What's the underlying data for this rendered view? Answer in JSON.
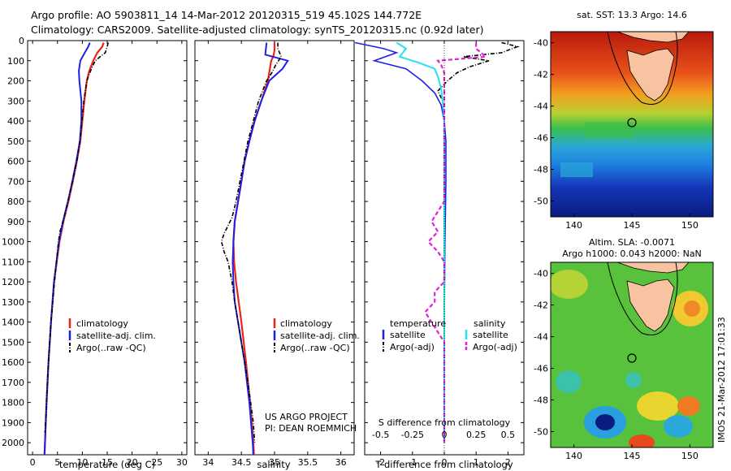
{
  "header": {
    "line1": "Argo profile: AO 5903811_14 14-Mar-2012 20120315_519 45.102S 144.772E",
    "line2": "Climatology: CARS2009. Satellite-adjusted climatology: synTS_20120315.nc (0.92d later)"
  },
  "colors": {
    "climatology": "#e8251b",
    "satellite": "#1f1fe6",
    "argo": "#000000",
    "sal_satellite": "#22e3ee",
    "sal_argo": "#e020d8",
    "land": "#f7c3a0"
  },
  "chart_data": [
    {
      "type": "line",
      "panel": "temperature",
      "xlabel": "temperature (deg C)",
      "xlim": [
        -1,
        31
      ],
      "xticks": [
        0,
        5,
        10,
        15,
        20,
        25,
        30
      ],
      "ylim": [
        0,
        2060
      ],
      "yticks": [
        0,
        100,
        200,
        300,
        400,
        500,
        600,
        700,
        800,
        900,
        1000,
        1100,
        1200,
        1300,
        1400,
        1500,
        1600,
        1700,
        1800,
        1900,
        2000
      ],
      "legend": [
        "climatology",
        "satellite-adj. clim.",
        "Argo(..raw -QC)"
      ],
      "series": [
        {
          "name": "climatology",
          "depth": [
            10,
            30,
            60,
            100,
            150,
            200,
            300,
            400,
            500,
            600,
            700,
            800,
            900,
            1000,
            1200,
            1400,
            1600,
            1800,
            2000,
            2060
          ],
          "values": [
            14.3,
            14.0,
            13.0,
            12.2,
            11.4,
            10.9,
            10.4,
            10.0,
            9.6,
            8.9,
            8.1,
            7.2,
            6.2,
            5.4,
            4.3,
            3.7,
            3.2,
            2.8,
            2.5,
            2.4
          ]
        },
        {
          "name": "satellite-adj. clim.",
          "depth": [
            10,
            30,
            60,
            100,
            150,
            200,
            300,
            400,
            500,
            600,
            700,
            800,
            900,
            1000,
            1200,
            1400,
            1600,
            1800,
            2000,
            2060
          ],
          "values": [
            11.5,
            11.2,
            10.5,
            9.6,
            9.3,
            9.4,
            9.8,
            9.8,
            9.5,
            8.8,
            8.0,
            7.1,
            6.1,
            5.3,
            4.3,
            3.7,
            3.2,
            2.8,
            2.5,
            2.4
          ]
        },
        {
          "name": "Argo(..raw -QC)",
          "depth": [
            10,
            30,
            60,
            80,
            100,
            130,
            160,
            200,
            300,
            400,
            500,
            600,
            700,
            800,
            900,
            950,
            1000,
            1100,
            1200,
            1400,
            1600,
            1800,
            1950
          ],
          "values": [
            15.2,
            15.0,
            14.6,
            13.6,
            12.6,
            12.0,
            11.5,
            10.9,
            10.3,
            9.9,
            9.5,
            8.9,
            8.0,
            7.1,
            6.1,
            5.5,
            5.2,
            4.8,
            4.4,
            3.7,
            3.2,
            2.8,
            2.5
          ]
        }
      ]
    },
    {
      "type": "line",
      "panel": "salinity",
      "xlabel": "salinity",
      "xlim": [
        33.8,
        36.2
      ],
      "xticks": [
        34,
        34.5,
        35,
        35.5,
        36
      ],
      "ylim": [
        0,
        2060
      ],
      "legend": [
        "climatology",
        "satellite-adj. clim.",
        "Argo(..raw -QC)"
      ],
      "annotation": [
        "US ARGO PROJECT",
        "PI: DEAN ROEMMICH"
      ],
      "series": [
        {
          "name": "climatology",
          "depth": [
            10,
            50,
            80,
            100,
            140,
            200,
            300,
            400,
            500,
            600,
            700,
            800,
            900,
            1000,
            1100,
            1200,
            1300,
            1400,
            1600,
            1800,
            2000,
            2060
          ],
          "values": [
            35.0,
            35.0,
            34.98,
            34.95,
            34.93,
            34.9,
            34.8,
            34.7,
            34.62,
            34.55,
            34.5,
            34.45,
            34.4,
            34.38,
            34.39,
            34.42,
            34.46,
            34.5,
            34.57,
            34.63,
            34.68,
            34.69
          ]
        },
        {
          "name": "satellite-adj. clim.",
          "depth": [
            10,
            40,
            70,
            100,
            140,
            200,
            300,
            400,
            500,
            600,
            700,
            800,
            900,
            1000,
            1100,
            1200,
            1300,
            1400,
            1600,
            1800,
            2000,
            2060
          ],
          "values": [
            34.88,
            34.87,
            34.86,
            35.2,
            35.12,
            34.92,
            34.8,
            34.7,
            34.62,
            34.55,
            34.5,
            34.45,
            34.4,
            34.38,
            34.37,
            34.38,
            34.4,
            34.45,
            34.55,
            34.62,
            34.67,
            34.68
          ]
        },
        {
          "name": "Argo(..raw -QC)",
          "depth": [
            10,
            40,
            80,
            120,
            160,
            200,
            300,
            400,
            500,
            600,
            700,
            800,
            880,
            920,
            960,
            1000,
            1050,
            1100,
            1200,
            1300,
            1400,
            1500,
            1600,
            1700,
            1800,
            1900,
            2000
          ],
          "values": [
            35.05,
            35.05,
            35.1,
            35.02,
            34.96,
            34.88,
            34.76,
            34.68,
            34.6,
            34.54,
            34.48,
            34.42,
            34.36,
            34.3,
            34.24,
            34.2,
            34.24,
            34.3,
            34.36,
            34.4,
            34.45,
            34.5,
            34.55,
            34.6,
            34.64,
            34.68,
            34.7
          ]
        }
      ]
    },
    {
      "type": "line",
      "panel": "differences",
      "xlabel": "T difference from climatology",
      "xlabel_top": "S difference from climatology",
      "xlim": [
        -2.5,
        2.5
      ],
      "xticks": [
        -2,
        -1,
        0,
        1,
        2
      ],
      "xticklabels_top": [
        "-0.5",
        "-0.25",
        "0",
        "0.25",
        "0.5"
      ],
      "ylim": [
        0,
        2060
      ],
      "legend_titles": [
        "temperature",
        "salinity"
      ],
      "legend": [
        "satellite",
        "Argo(-adj)",
        "satellite",
        "Argo(-adj)"
      ],
      "series": [
        {
          "name": "satellite",
          "group": "temperature",
          "depth": [
            10,
            40,
            60,
            100,
            140,
            200,
            260,
            320,
            400,
            500,
            700,
            1000,
            1400,
            2000
          ],
          "values": [
            -2.8,
            -1.9,
            -1.5,
            -2.2,
            -1.2,
            -0.7,
            -0.3,
            -0.1,
            0.0,
            0.05,
            0.05,
            0.02,
            0.0,
            0.0
          ]
        },
        {
          "name": "Argo(-adj)",
          "group": "temperature",
          "depth": [
            10,
            30,
            60,
            80,
            100,
            130,
            160,
            200,
            250,
            300,
            400,
            500,
            700,
            1000,
            1400,
            2000
          ],
          "values": [
            1.8,
            2.3,
            1.8,
            0.6,
            1.4,
            0.8,
            0.4,
            0.1,
            -0.2,
            -0.05,
            0.0,
            0.0,
            0.0,
            0.0,
            0.0,
            0.0
          ]
        },
        {
          "name": "satellite",
          "group": "salinity",
          "depth": [
            10,
            40,
            80,
            110,
            140,
            180,
            240,
            300,
            400,
            600,
            900,
            1200,
            1500,
            1800,
            2000
          ],
          "values": [
            -1.5,
            -1.2,
            -1.4,
            -0.8,
            -0.3,
            -0.2,
            -0.1,
            -0.05,
            0.0,
            0.0,
            0.0,
            0.0,
            0.0,
            0.0,
            0.0
          ]
        },
        {
          "name": "Argo(-adj)",
          "group": "salinity",
          "depth": [
            10,
            40,
            80,
            100,
            120,
            160,
            200,
            300,
            400,
            800,
            900,
            950,
            1000,
            1050,
            1100,
            1200,
            1250,
            1300,
            1350,
            1400,
            1500,
            1800,
            2000
          ],
          "values": [
            1.0,
            1.0,
            1.3,
            -0.2,
            -0.1,
            0.0,
            0.0,
            0.0,
            0.0,
            0.0,
            -0.4,
            -0.2,
            -0.5,
            -0.2,
            0.0,
            0.0,
            -0.3,
            -0.3,
            -0.6,
            -0.4,
            0.0,
            0.0,
            0.0
          ]
        }
      ]
    },
    {
      "type": "heatmap",
      "panel": "sst-map",
      "title": "sat. SST: 13.3 Argo: 14.6",
      "xlim": [
        138,
        152
      ],
      "ylim": [
        -51,
        -39.3
      ],
      "xticks": [
        140,
        145,
        150
      ],
      "yticks": [
        -40,
        -42,
        -44,
        -46,
        -48,
        -50
      ],
      "argo_position": [
        144.772,
        -45.102
      ]
    },
    {
      "type": "heatmap",
      "panel": "sla-map",
      "title": "Altim. SLA: -0.0071",
      "subtitle": "Argo h1000: 0.043 h2000: NaN",
      "side_label": "IMOS 21-Mar-2012 17:01:33",
      "xlim": [
        138,
        152
      ],
      "ylim": [
        -51,
        -39.3
      ],
      "xticks": [
        140,
        145,
        150
      ],
      "yticks": [
        -40,
        -42,
        -44,
        -46,
        -48,
        -50
      ],
      "argo_position": [
        144.772,
        -45.102
      ]
    }
  ]
}
